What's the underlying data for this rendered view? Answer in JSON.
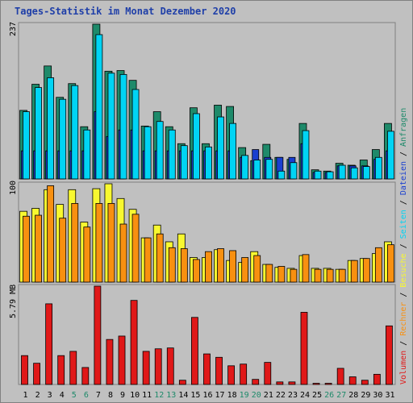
{
  "title": "Tages-Statistik im Monat Dezember 2020",
  "colors": {
    "anfragen": "#1e8a6a",
    "dateien": "#1a3fd0",
    "seiten": "#00d4f4",
    "besuche": "#f8f830",
    "rechner": "#f89010",
    "volumen": "#e01818",
    "weekend": "#1e8a6a",
    "weekday": "#000000",
    "plotbg": "#c0c0c0"
  },
  "chart_data": [
    {
      "type": "bar",
      "name": "hits",
      "ymax_label": "237",
      "ylim": [
        0,
        237
      ],
      "categories": [
        "1",
        "2",
        "3",
        "4",
        "5",
        "6",
        "7",
        "8",
        "9",
        "10",
        "11",
        "12",
        "13",
        "14",
        "15",
        "16",
        "17",
        "18",
        "19",
        "20",
        "21",
        "22",
        "23",
        "24",
        "25",
        "26",
        "27",
        "28",
        "29",
        "30",
        "31"
      ],
      "weekend": [
        false,
        false,
        false,
        false,
        true,
        true,
        false,
        false,
        false,
        false,
        false,
        true,
        true,
        false,
        false,
        false,
        false,
        false,
        true,
        true,
        false,
        false,
        false,
        false,
        false,
        true,
        true,
        false,
        false,
        false,
        false
      ],
      "series": [
        {
          "name": "Anfragen",
          "values": [
            105,
            145,
            173,
            125,
            146,
            80,
            237,
            165,
            166,
            151,
            81,
            103,
            80,
            54,
            109,
            54,
            113,
            111,
            48,
            28,
            53,
            33,
            30,
            85,
            14,
            12,
            24,
            21,
            29,
            45,
            85
          ]
        },
        {
          "name": "Dateien",
          "values": [
            43,
            43,
            43,
            43,
            43,
            43,
            103,
            65,
            75,
            75,
            43,
            43,
            43,
            43,
            43,
            43,
            43,
            43,
            33,
            45,
            33,
            33,
            33,
            54,
            10,
            10,
            20,
            20,
            20,
            30,
            43
          ]
        },
        {
          "name": "Seiten",
          "values": [
            103,
            140,
            155,
            122,
            143,
            75,
            221,
            162,
            160,
            137,
            80,
            88,
            75,
            51,
            100,
            49,
            95,
            85,
            36,
            29,
            30,
            12,
            25,
            74,
            12,
            11,
            21,
            17,
            19,
            33,
            73
          ]
        }
      ]
    },
    {
      "type": "bar",
      "name": "visits",
      "ymax_label": "100",
      "ylim": [
        0,
        100
      ],
      "categories": [
        "1",
        "2",
        "3",
        "4",
        "5",
        "6",
        "7",
        "8",
        "9",
        "10",
        "11",
        "12",
        "13",
        "14",
        "15",
        "16",
        "17",
        "18",
        "19",
        "20",
        "21",
        "22",
        "23",
        "24",
        "25",
        "26",
        "27",
        "28",
        "29",
        "30",
        "31"
      ],
      "series": [
        {
          "name": "Besuche",
          "values": [
            72,
            75,
            94,
            79,
            94,
            61,
            95,
            100,
            85,
            74,
            45,
            58,
            41,
            49,
            25,
            25,
            33,
            22,
            20,
            31,
            18,
            15,
            14,
            27,
            14,
            14,
            13,
            22,
            24,
            29,
            41
          ]
        },
        {
          "name": "Rechner",
          "values": [
            67,
            68,
            98,
            65,
            80,
            56,
            80,
            80,
            59,
            69,
            45,
            49,
            35,
            34,
            23,
            31,
            34,
            32,
            25,
            27,
            18,
            16,
            13,
            28,
            13,
            13,
            13,
            22,
            24,
            35,
            38
          ]
        }
      ]
    },
    {
      "type": "bar",
      "name": "volume",
      "ymax_label": "5.79 MB",
      "ylim": [
        0,
        5.79
      ],
      "categories": [
        "1",
        "2",
        "3",
        "4",
        "5",
        "6",
        "7",
        "8",
        "9",
        "10",
        "11",
        "12",
        "13",
        "14",
        "15",
        "16",
        "17",
        "18",
        "19",
        "20",
        "21",
        "22",
        "23",
        "24",
        "25",
        "26",
        "27",
        "28",
        "29",
        "30",
        "31"
      ],
      "series": [
        {
          "name": "Volumen",
          "values": [
            1.7,
            1.25,
            4.75,
            1.7,
            1.95,
            1.0,
            5.79,
            2.65,
            2.85,
            4.95,
            1.95,
            2.1,
            2.15,
            0.25,
            3.95,
            1.8,
            1.6,
            1.1,
            1.2,
            0.3,
            1.3,
            0.15,
            0.15,
            4.25,
            0.07,
            0.07,
            0.95,
            0.45,
            0.25,
            0.6,
            3.45
          ]
        }
      ]
    }
  ],
  "side_legend": [
    {
      "text": "Volumen",
      "color": "#e01818"
    },
    {
      "text": " / ",
      "color": "#000000"
    },
    {
      "text": "Rechner",
      "color": "#f89010"
    },
    {
      "text": " / ",
      "color": "#000000"
    },
    {
      "text": "Besuche",
      "color": "#f8f830"
    },
    {
      "text": " / ",
      "color": "#000000"
    },
    {
      "text": "Seiten",
      "color": "#00d4f4"
    },
    {
      "text": " / ",
      "color": "#000000"
    },
    {
      "text": "Dateien",
      "color": "#1a3fd0"
    },
    {
      "text": " / ",
      "color": "#000000"
    },
    {
      "text": "Anfragen",
      "color": "#1e8a6a"
    }
  ]
}
